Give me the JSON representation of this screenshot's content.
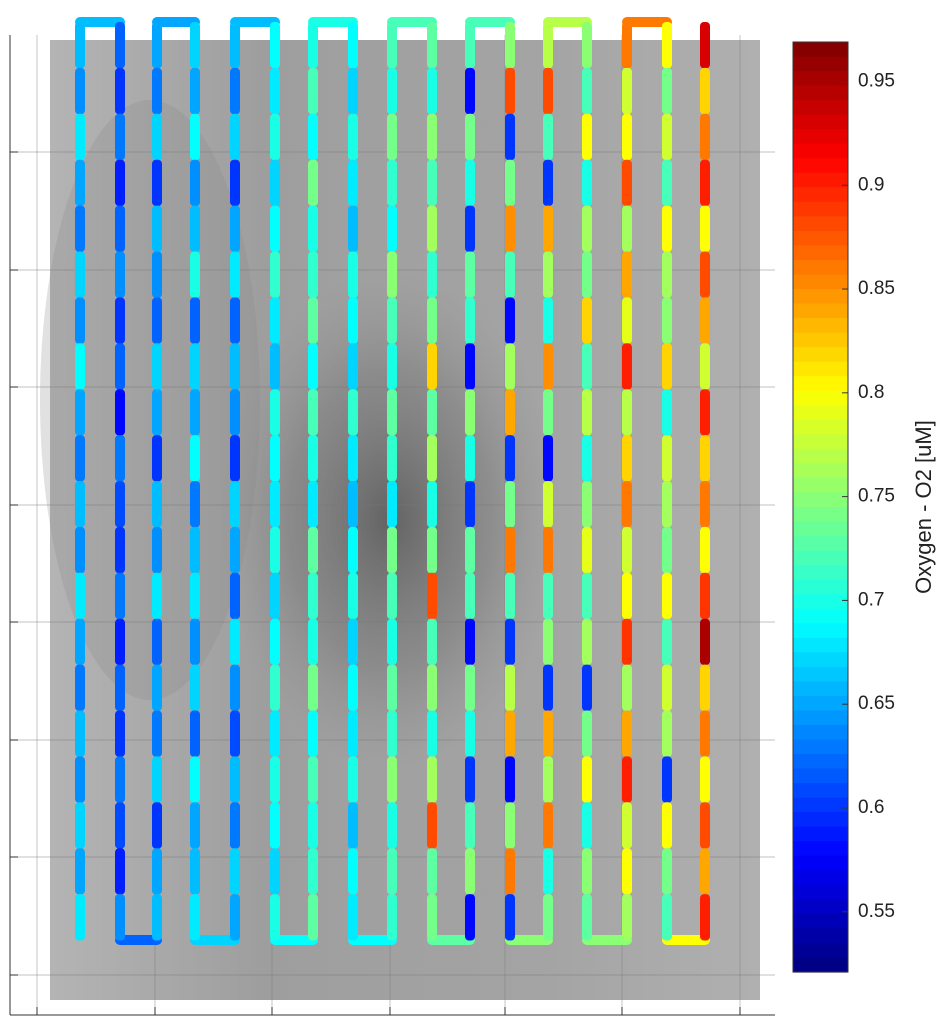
{
  "chart_data": {
    "type": "track",
    "colorbar_label": "Oxygen - O2 [uM]",
    "clim": [
      0.521,
      0.969
    ],
    "cticks": [
      0.55,
      0.6,
      0.65,
      0.7,
      0.75,
      0.8,
      0.85,
      0.9,
      0.95
    ],
    "colormap": "jet",
    "series": [
      {
        "values": [
          0.66,
          0.64,
          0.68,
          0.65,
          0.63,
          0.67,
          0.64,
          0.69,
          0.65,
          0.63,
          0.66,
          0.64,
          0.68,
          0.65,
          0.63,
          0.66,
          0.64,
          0.67,
          0.65,
          0.68
        ]
      },
      {
        "values": [
          0.62,
          0.6,
          0.63,
          0.59,
          0.62,
          0.64,
          0.6,
          0.62,
          0.58,
          0.63,
          0.61,
          0.6,
          0.63,
          0.59,
          0.62,
          0.6,
          0.63,
          0.61,
          0.59,
          0.64
        ]
      },
      {
        "values": [
          0.65,
          0.63,
          0.67,
          0.6,
          0.66,
          0.64,
          0.62,
          0.67,
          0.65,
          0.6,
          0.66,
          0.64,
          0.68,
          0.62,
          0.65,
          0.63,
          0.67,
          0.6,
          0.65,
          0.66
        ]
      },
      {
        "values": [
          0.67,
          0.65,
          0.69,
          0.64,
          0.66,
          0.7,
          0.62,
          0.67,
          0.65,
          0.69,
          0.63,
          0.66,
          0.68,
          0.64,
          0.67,
          0.62,
          0.69,
          0.65,
          0.66,
          0.68
        ]
      },
      {
        "values": [
          0.66,
          0.63,
          0.67,
          0.6,
          0.65,
          0.68,
          0.62,
          0.66,
          0.64,
          0.6,
          0.67,
          0.65,
          0.62,
          0.68,
          0.64,
          0.61,
          0.66,
          0.63,
          0.67,
          0.65
        ]
      },
      {
        "values": [
          0.69,
          0.68,
          0.7,
          0.67,
          0.69,
          0.71,
          0.68,
          0.66,
          0.7,
          0.69,
          0.68,
          0.7,
          0.67,
          0.69,
          0.71,
          0.68,
          0.7,
          0.69,
          0.67,
          0.7
        ]
      },
      {
        "values": [
          0.7,
          0.72,
          0.69,
          0.74,
          0.7,
          0.71,
          0.73,
          0.69,
          0.72,
          0.7,
          0.68,
          0.73,
          0.71,
          0.7,
          0.74,
          0.69,
          0.72,
          0.7,
          0.71,
          0.73
        ]
      },
      {
        "values": [
          0.69,
          0.67,
          0.7,
          0.68,
          0.66,
          0.7,
          0.69,
          0.67,
          0.71,
          0.68,
          0.66,
          0.69,
          0.7,
          0.67,
          0.69,
          0.68,
          0.7,
          0.66,
          0.69,
          0.68
        ]
      },
      {
        "values": [
          0.72,
          0.7,
          0.74,
          0.71,
          0.69,
          0.75,
          0.72,
          0.7,
          0.73,
          0.71,
          0.68,
          0.74,
          0.72,
          0.7,
          0.73,
          0.71,
          0.75,
          0.7,
          0.72,
          0.71
        ]
      },
      {
        "values": [
          0.73,
          0.7,
          0.75,
          0.72,
          0.76,
          0.71,
          0.74,
          0.82,
          0.73,
          0.76,
          0.7,
          0.74,
          0.88,
          0.72,
          0.75,
          0.7,
          0.76,
          0.88,
          0.73,
          0.74
        ]
      },
      {
        "values": [
          0.72,
          0.58,
          0.74,
          0.7,
          0.6,
          0.73,
          0.71,
          0.58,
          0.75,
          0.7,
          0.6,
          0.73,
          0.72,
          0.58,
          0.74,
          0.7,
          0.6,
          0.72,
          0.75,
          0.58
        ]
      },
      {
        "values": [
          0.75,
          0.88,
          0.6,
          0.74,
          0.85,
          0.72,
          0.58,
          0.76,
          0.84,
          0.6,
          0.74,
          0.86,
          0.72,
          0.6,
          0.77,
          0.84,
          0.58,
          0.75,
          0.86,
          0.6
        ]
      },
      {
        "values": [
          0.77,
          0.88,
          0.72,
          0.6,
          0.84,
          0.76,
          0.7,
          0.85,
          0.74,
          0.58,
          0.78,
          0.86,
          0.72,
          0.75,
          0.6,
          0.84,
          0.76,
          0.86,
          0.7,
          0.74
        ]
      },
      {
        "values": [
          0.75,
          0.72,
          0.8,
          0.7,
          0.76,
          0.74,
          0.82,
          0.72,
          0.77,
          0.7,
          0.75,
          0.79,
          0.72,
          0.76,
          0.6,
          0.74,
          0.8,
          0.7,
          0.75,
          0.73
        ]
      },
      {
        "values": [
          0.86,
          0.78,
          0.8,
          0.88,
          0.76,
          0.84,
          0.79,
          0.9,
          0.77,
          0.82,
          0.86,
          0.78,
          0.8,
          0.89,
          0.76,
          0.84,
          0.9,
          0.78,
          0.8,
          0.76
        ]
      },
      {
        "values": [
          0.8,
          0.74,
          0.78,
          0.72,
          0.8,
          0.76,
          0.75,
          0.82,
          0.7,
          0.78,
          0.76,
          0.74,
          0.8,
          0.72,
          0.78,
          0.76,
          0.6,
          0.8,
          0.74,
          0.72
        ]
      },
      {
        "values": [
          0.93,
          0.82,
          0.86,
          0.9,
          0.8,
          0.88,
          0.84,
          0.78,
          0.9,
          0.82,
          0.86,
          0.8,
          0.89,
          0.95,
          0.82,
          0.86,
          0.8,
          0.88,
          0.84,
          0.9
        ]
      }
    ]
  }
}
